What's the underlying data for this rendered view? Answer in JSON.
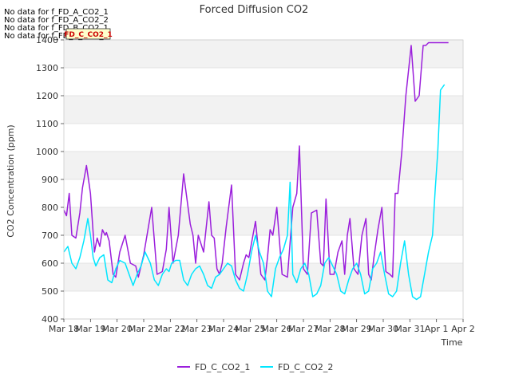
{
  "chart_data": {
    "type": "line",
    "title": "Forced Diffusion CO2",
    "xlabel": "Time",
    "ylabel": "CO2 Concentration (ppm)",
    "ylim": [
      400,
      1400
    ],
    "yticks": [
      400,
      500,
      600,
      700,
      800,
      900,
      1000,
      1100,
      1200,
      1300,
      1400
    ],
    "xlim": [
      0,
      15
    ],
    "xtick_positions": [
      0,
      1,
      2,
      3,
      4,
      5,
      6,
      7,
      8,
      9,
      10,
      11,
      12,
      13,
      14,
      15
    ],
    "xtick_labels": [
      "Mar 18",
      "Mar 19",
      "Mar 20",
      "Mar 21",
      "Mar 22",
      "Mar 23",
      "Mar 24",
      "Mar 25",
      "Mar 26",
      "Mar 27",
      "Mar 28",
      "Mar 29",
      "Mar 30",
      "Mar 31",
      "Apr 1",
      "Apr 2"
    ],
    "grid": true,
    "banded_background": true,
    "legend_placement": "bottom-center",
    "no_data_messages": [
      "No data for f_FD_A_CO2_1",
      "No data for f_FD_A_CO2_2",
      "No data for f_FD_B_CO2_1",
      "No data for f_FD_B_CO2_2"
    ],
    "annotation_box": "FD_C_CO2_1",
    "series": [
      {
        "name": "FD_C_CO2_1",
        "color": "#9b1fdc",
        "x": [
          0.0,
          0.1,
          0.2,
          0.3,
          0.45,
          0.6,
          0.7,
          0.85,
          1.0,
          1.15,
          1.25,
          1.35,
          1.45,
          1.5,
          1.55,
          1.6,
          1.7,
          1.85,
          1.95,
          2.1,
          2.3,
          2.5,
          2.7,
          2.8,
          3.0,
          3.3,
          3.5,
          3.7,
          3.85,
          3.95,
          4.1,
          4.3,
          4.5,
          4.75,
          4.85,
          4.95,
          5.05,
          5.25,
          5.45,
          5.55,
          5.65,
          5.75,
          5.85,
          5.95,
          6.1,
          6.3,
          6.45,
          6.6,
          6.75,
          6.85,
          6.95,
          7.2,
          7.4,
          7.55,
          7.65,
          7.75,
          7.85,
          8.0,
          8.2,
          8.4,
          8.6,
          8.75,
          8.85,
          9.0,
          9.15,
          9.3,
          9.5,
          9.65,
          9.75,
          9.85,
          10.0,
          10.15,
          10.3,
          10.45,
          10.55,
          10.65,
          10.75,
          10.9,
          11.05,
          11.2,
          11.35,
          11.45,
          11.55,
          11.65,
          11.8,
          11.95,
          12.1,
          12.25,
          12.35,
          12.45,
          12.55,
          12.7,
          12.85,
          13.05,
          13.2,
          13.35,
          13.5,
          13.6,
          13.7,
          13.85,
          13.95,
          14.05,
          14.2,
          14.3,
          14.4,
          14.45
        ],
        "values": [
          790,
          770,
          850,
          700,
          690,
          780,
          870,
          950,
          850,
          640,
          690,
          660,
          720,
          710,
          700,
          710,
          680,
          560,
          550,
          640,
          700,
          600,
          590,
          550,
          630,
          800,
          560,
          570,
          650,
          800,
          600,
          700,
          920,
          740,
          700,
          600,
          700,
          640,
          820,
          700,
          690,
          580,
          560,
          600,
          730,
          880,
          560,
          540,
          600,
          630,
          620,
          750,
          560,
          540,
          620,
          720,
          700,
          800,
          560,
          550,
          800,
          850,
          1020,
          580,
          560,
          780,
          790,
          600,
          590,
          830,
          560,
          560,
          640,
          680,
          560,
          700,
          760,
          580,
          560,
          700,
          760,
          560,
          540,
          620,
          720,
          800,
          570,
          560,
          550,
          850,
          850,
          1000,
          1200,
          1380,
          1180,
          1200,
          1380,
          1380,
          1390,
          1390,
          1390,
          1390,
          1390,
          1390,
          1390,
          1390
        ],
        "values_note": ""
      },
      {
        "name": "FD_C_CO2_2",
        "color": "#00e6ff",
        "x": [
          0.0,
          0.15,
          0.3,
          0.45,
          0.6,
          0.75,
          0.9,
          1.0,
          1.1,
          1.2,
          1.35,
          1.5,
          1.65,
          1.8,
          1.95,
          2.1,
          2.3,
          2.45,
          2.6,
          2.75,
          2.9,
          3.05,
          3.25,
          3.4,
          3.55,
          3.7,
          3.85,
          3.95,
          4.05,
          4.2,
          4.35,
          4.5,
          4.65,
          4.8,
          4.95,
          5.1,
          5.25,
          5.4,
          5.55,
          5.7,
          5.85,
          6.0,
          6.15,
          6.3,
          6.45,
          6.6,
          6.75,
          6.9,
          7.05,
          7.2,
          7.35,
          7.5,
          7.65,
          7.8,
          7.95,
          8.1,
          8.25,
          8.4,
          8.5,
          8.6,
          8.75,
          8.9,
          9.05,
          9.2,
          9.35,
          9.5,
          9.65,
          9.8,
          9.95,
          10.1,
          10.25,
          10.4,
          10.55,
          10.7,
          10.85,
          11.0,
          11.15,
          11.3,
          11.45,
          11.6,
          11.75,
          11.9,
          12.05,
          12.2,
          12.35,
          12.5,
          12.65,
          12.8,
          12.95,
          13.1,
          13.25,
          13.4,
          13.55,
          13.7,
          13.85,
          13.95,
          14.05,
          14.15,
          14.3
        ],
        "values": [
          640,
          660,
          600,
          580,
          620,
          680,
          760,
          700,
          620,
          590,
          620,
          630,
          540,
          530,
          580,
          610,
          600,
          560,
          520,
          560,
          590,
          640,
          600,
          540,
          520,
          560,
          580,
          570,
          600,
          610,
          610,
          540,
          520,
          560,
          580,
          590,
          560,
          520,
          510,
          550,
          560,
          580,
          600,
          590,
          540,
          510,
          500,
          560,
          640,
          700,
          640,
          600,
          500,
          480,
          580,
          620,
          650,
          700,
          890,
          560,
          530,
          580,
          600,
          560,
          480,
          490,
          520,
          600,
          620,
          590,
          560,
          500,
          490,
          540,
          580,
          600,
          560,
          490,
          500,
          580,
          600,
          640,
          560,
          490,
          480,
          500,
          600,
          680,
          560,
          480,
          470,
          480,
          560,
          640,
          700,
          860,
          1000,
          1220,
          1240
        ],
        "values_note": ""
      }
    ]
  }
}
